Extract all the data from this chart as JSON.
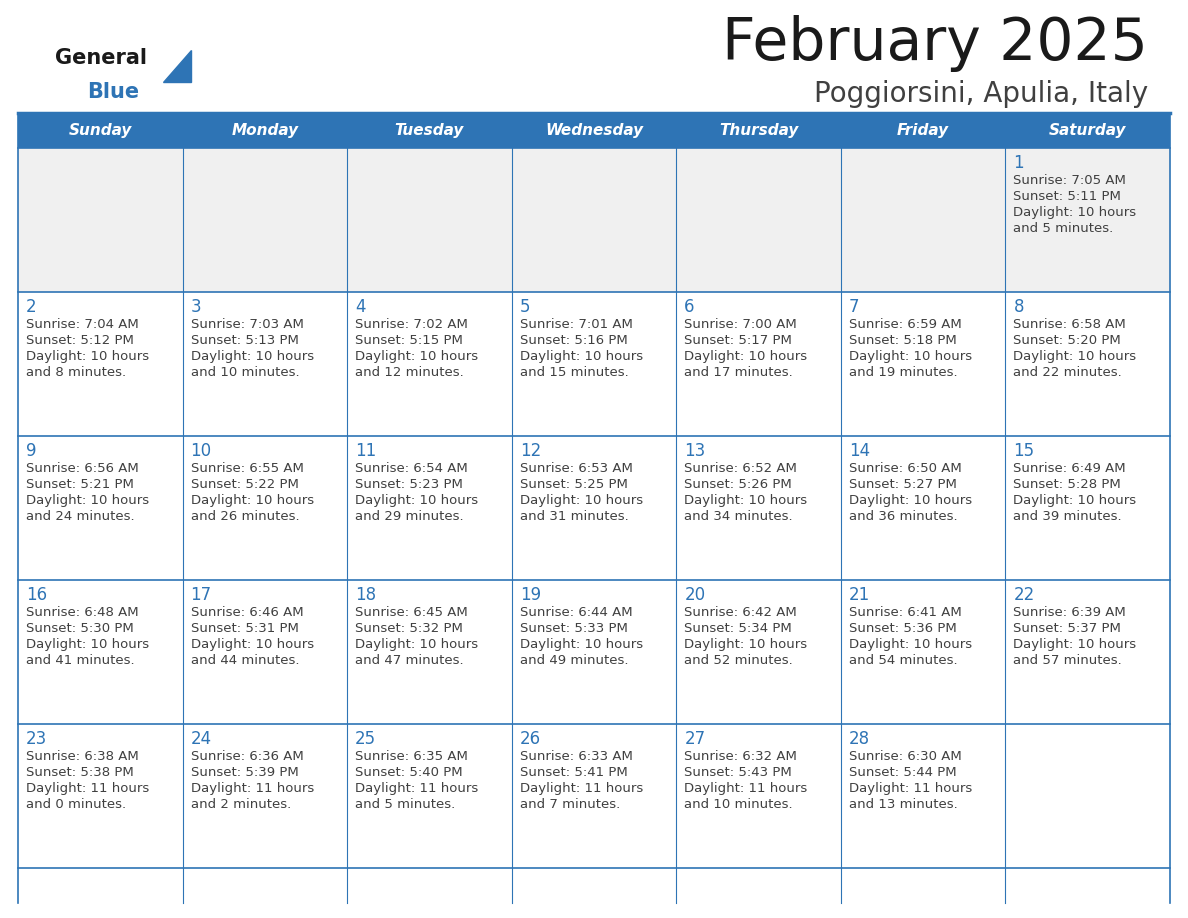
{
  "title": "February 2025",
  "subtitle": "Poggiorsini, Apulia, Italy",
  "header_bg": "#2E74B5",
  "header_text": "#FFFFFF",
  "day_names": [
    "Sunday",
    "Monday",
    "Tuesday",
    "Wednesday",
    "Thursday",
    "Friday",
    "Saturday"
  ],
  "bg_color": "#FFFFFF",
  "cell_bg_week1": "#F0F0F0",
  "border_color": "#2E74B5",
  "day_number_color": "#2E74B5",
  "text_color": "#404040",
  "logo_general_color": "#1a1a1a",
  "logo_blue_color": "#2E74B5",
  "logo_triangle_color": "#2E74B5",
  "calendar_data": [
    [
      null,
      null,
      null,
      null,
      null,
      null,
      {
        "day": 1,
        "sunrise": "7:05 AM",
        "sunset": "5:11 PM",
        "daylight_line1": "Daylight: 10 hours",
        "daylight_line2": "and 5 minutes."
      }
    ],
    [
      {
        "day": 2,
        "sunrise": "7:04 AM",
        "sunset": "5:12 PM",
        "daylight_line1": "Daylight: 10 hours",
        "daylight_line2": "and 8 minutes."
      },
      {
        "day": 3,
        "sunrise": "7:03 AM",
        "sunset": "5:13 PM",
        "daylight_line1": "Daylight: 10 hours",
        "daylight_line2": "and 10 minutes."
      },
      {
        "day": 4,
        "sunrise": "7:02 AM",
        "sunset": "5:15 PM",
        "daylight_line1": "Daylight: 10 hours",
        "daylight_line2": "and 12 minutes."
      },
      {
        "day": 5,
        "sunrise": "7:01 AM",
        "sunset": "5:16 PM",
        "daylight_line1": "Daylight: 10 hours",
        "daylight_line2": "and 15 minutes."
      },
      {
        "day": 6,
        "sunrise": "7:00 AM",
        "sunset": "5:17 PM",
        "daylight_line1": "Daylight: 10 hours",
        "daylight_line2": "and 17 minutes."
      },
      {
        "day": 7,
        "sunrise": "6:59 AM",
        "sunset": "5:18 PM",
        "daylight_line1": "Daylight: 10 hours",
        "daylight_line2": "and 19 minutes."
      },
      {
        "day": 8,
        "sunrise": "6:58 AM",
        "sunset": "5:20 PM",
        "daylight_line1": "Daylight: 10 hours",
        "daylight_line2": "and 22 minutes."
      }
    ],
    [
      {
        "day": 9,
        "sunrise": "6:56 AM",
        "sunset": "5:21 PM",
        "daylight_line1": "Daylight: 10 hours",
        "daylight_line2": "and 24 minutes."
      },
      {
        "day": 10,
        "sunrise": "6:55 AM",
        "sunset": "5:22 PM",
        "daylight_line1": "Daylight: 10 hours",
        "daylight_line2": "and 26 minutes."
      },
      {
        "day": 11,
        "sunrise": "6:54 AM",
        "sunset": "5:23 PM",
        "daylight_line1": "Daylight: 10 hours",
        "daylight_line2": "and 29 minutes."
      },
      {
        "day": 12,
        "sunrise": "6:53 AM",
        "sunset": "5:25 PM",
        "daylight_line1": "Daylight: 10 hours",
        "daylight_line2": "and 31 minutes."
      },
      {
        "day": 13,
        "sunrise": "6:52 AM",
        "sunset": "5:26 PM",
        "daylight_line1": "Daylight: 10 hours",
        "daylight_line2": "and 34 minutes."
      },
      {
        "day": 14,
        "sunrise": "6:50 AM",
        "sunset": "5:27 PM",
        "daylight_line1": "Daylight: 10 hours",
        "daylight_line2": "and 36 minutes."
      },
      {
        "day": 15,
        "sunrise": "6:49 AM",
        "sunset": "5:28 PM",
        "daylight_line1": "Daylight: 10 hours",
        "daylight_line2": "and 39 minutes."
      }
    ],
    [
      {
        "day": 16,
        "sunrise": "6:48 AM",
        "sunset": "5:30 PM",
        "daylight_line1": "Daylight: 10 hours",
        "daylight_line2": "and 41 minutes."
      },
      {
        "day": 17,
        "sunrise": "6:46 AM",
        "sunset": "5:31 PM",
        "daylight_line1": "Daylight: 10 hours",
        "daylight_line2": "and 44 minutes."
      },
      {
        "day": 18,
        "sunrise": "6:45 AM",
        "sunset": "5:32 PM",
        "daylight_line1": "Daylight: 10 hours",
        "daylight_line2": "and 47 minutes."
      },
      {
        "day": 19,
        "sunrise": "6:44 AM",
        "sunset": "5:33 PM",
        "daylight_line1": "Daylight: 10 hours",
        "daylight_line2": "and 49 minutes."
      },
      {
        "day": 20,
        "sunrise": "6:42 AM",
        "sunset": "5:34 PM",
        "daylight_line1": "Daylight: 10 hours",
        "daylight_line2": "and 52 minutes."
      },
      {
        "day": 21,
        "sunrise": "6:41 AM",
        "sunset": "5:36 PM",
        "daylight_line1": "Daylight: 10 hours",
        "daylight_line2": "and 54 minutes."
      },
      {
        "day": 22,
        "sunrise": "6:39 AM",
        "sunset": "5:37 PM",
        "daylight_line1": "Daylight: 10 hours",
        "daylight_line2": "and 57 minutes."
      }
    ],
    [
      {
        "day": 23,
        "sunrise": "6:38 AM",
        "sunset": "5:38 PM",
        "daylight_line1": "Daylight: 11 hours",
        "daylight_line2": "and 0 minutes."
      },
      {
        "day": 24,
        "sunrise": "6:36 AM",
        "sunset": "5:39 PM",
        "daylight_line1": "Daylight: 11 hours",
        "daylight_line2": "and 2 minutes."
      },
      {
        "day": 25,
        "sunrise": "6:35 AM",
        "sunset": "5:40 PM",
        "daylight_line1": "Daylight: 11 hours",
        "daylight_line2": "and 5 minutes."
      },
      {
        "day": 26,
        "sunrise": "6:33 AM",
        "sunset": "5:41 PM",
        "daylight_line1": "Daylight: 11 hours",
        "daylight_line2": "and 7 minutes."
      },
      {
        "day": 27,
        "sunrise": "6:32 AM",
        "sunset": "5:43 PM",
        "daylight_line1": "Daylight: 11 hours",
        "daylight_line2": "and 10 minutes."
      },
      {
        "day": 28,
        "sunrise": "6:30 AM",
        "sunset": "5:44 PM",
        "daylight_line1": "Daylight: 11 hours",
        "daylight_line2": "and 13 minutes."
      },
      null
    ]
  ]
}
